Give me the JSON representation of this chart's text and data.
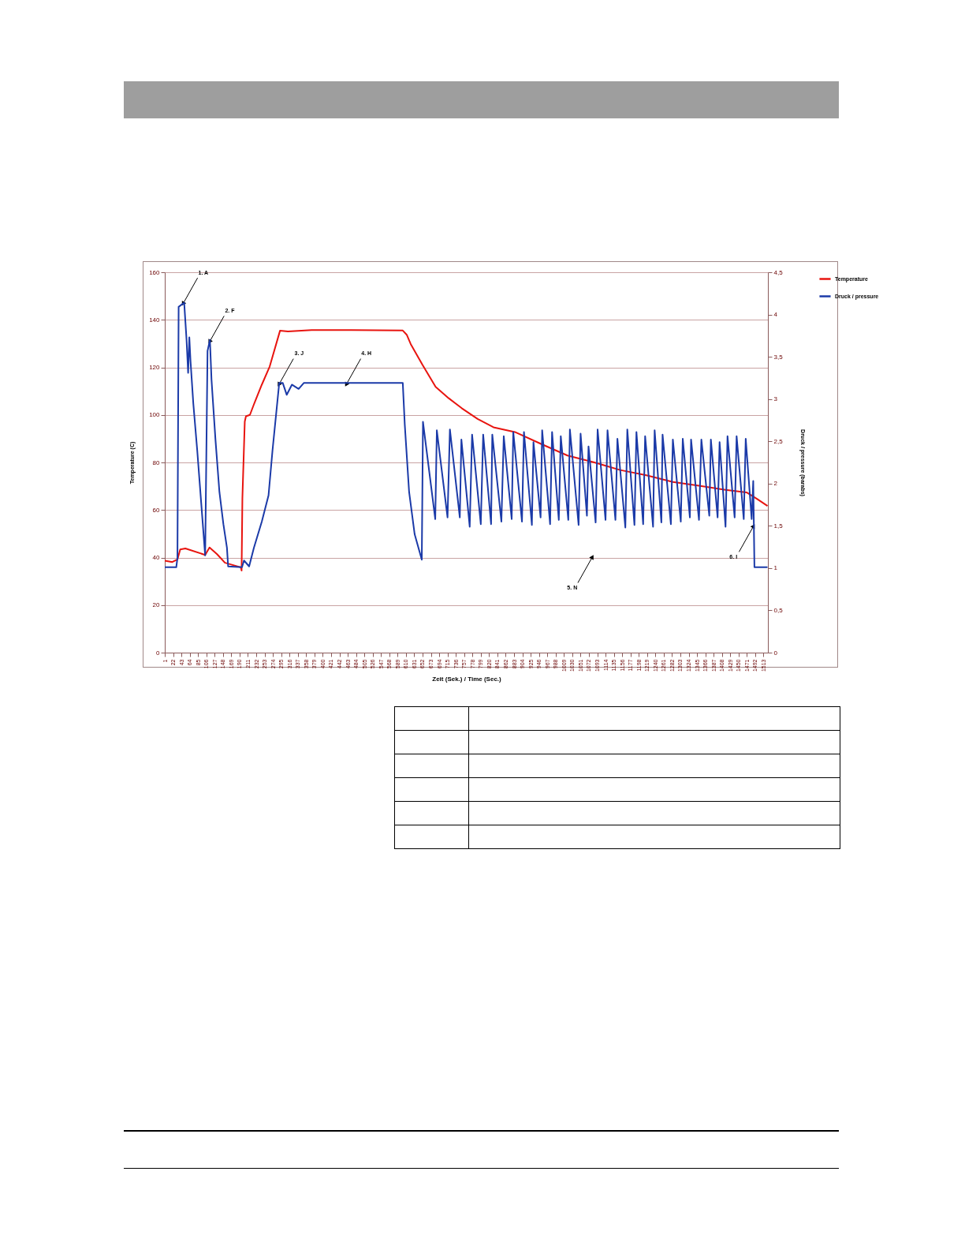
{
  "chart_data": {
    "type": "line",
    "xlabel": "Zeit (Sek.) / Time (Sec.)",
    "ylabel": "Temperature (C)",
    "y2label": "Druck / pressure (barabs)",
    "xlim": [
      1,
      1524
    ],
    "xticks": [
      1,
      22,
      43,
      64,
      85,
      106,
      127,
      148,
      169,
      190,
      211,
      232,
      253,
      274,
      295,
      316,
      337,
      358,
      379,
      400,
      421,
      442,
      463,
      484,
      505,
      526,
      547,
      568,
      589,
      610,
      631,
      652,
      673,
      694,
      715,
      736,
      757,
      778,
      799,
      820,
      841,
      862,
      883,
      904,
      925,
      946,
      967,
      988,
      1009,
      1030,
      1051,
      1072,
      1093,
      1114,
      1135,
      1156,
      1177,
      1198,
      1219,
      1240,
      1261,
      1282,
      1303,
      1324,
      1345,
      1366,
      1387,
      1408,
      1429,
      1450,
      1471,
      1492,
      1513
    ],
    "ylim": [
      0,
      160
    ],
    "yticks": [
      0,
      20,
      40,
      60,
      80,
      100,
      120,
      140,
      160
    ],
    "y2lim": [
      0,
      4.5
    ],
    "y2ticks": [
      0,
      {
        "value": 0.5,
        "label": "0,5"
      },
      1,
      {
        "value": 1.5,
        "label": "1,5"
      },
      2,
      {
        "value": 2.5,
        "label": "2,5"
      },
      3,
      {
        "value": 3.5,
        "label": "3,5"
      },
      4,
      {
        "value": 4.5,
        "label": "4,5"
      }
    ],
    "grid": "y",
    "legend": "right",
    "series": [
      {
        "name": "Temperature",
        "color": "#e8140f",
        "x": [
          1,
          20,
          33,
          40,
          53,
          103,
          114,
          133,
          153,
          193,
          195,
          197,
          203,
          206,
          216,
          226,
          246,
          266,
          292,
          312,
          372,
          472,
          602,
          612,
          622,
          652,
          685,
          718,
          751,
          791,
          831,
          885,
          951,
          1018,
          1084,
          1151,
          1217,
          1284,
          1350,
          1417,
          1470,
          1497,
          1523
        ],
        "values": [
          38.7,
          38.1,
          39.2,
          43.4,
          43.8,
          41.1,
          44.2,
          41.4,
          37.8,
          35.9,
          34.5,
          65,
          97.2,
          99.4,
          100,
          104.4,
          112.7,
          120.4,
          135.4,
          135.1,
          135.7,
          135.7,
          135.5,
          133.7,
          129.8,
          121,
          111.8,
          107,
          102.8,
          98.3,
          94.8,
          92.8,
          87.8,
          82.9,
          80.1,
          76.8,
          74.6,
          71.8,
          70.2,
          68.5,
          67.4,
          64.6,
          61.7
        ]
      },
      {
        "name": "Druck / pressure",
        "color": "#1b3aa8",
        "axis": "y2",
        "x": [
          1,
          30,
          33,
          36,
          50,
          53,
          56,
          60,
          63,
          66,
          73,
          83,
          93,
          103,
          109,
          115,
          119,
          129,
          139,
          149,
          158,
          161,
          196,
          201,
          214,
          226,
          246,
          263,
          273,
          290,
          299,
          309,
          322,
          339,
          352,
          472,
          602,
          607,
          618,
          632,
          650,
          653,
          684,
          688,
          715,
          721,
          746,
          750,
          771,
          777,
          799,
          805,
          825,
          828,
          851,
          857,
          877,
          881,
          903,
          908,
          928,
          932,
          950,
          954,
          974,
          979,
          996,
          1001,
          1020,
          1024,
          1046,
          1051,
          1067,
          1071,
          1089,
          1094,
          1114,
          1119,
          1139,
          1144,
          1164,
          1169,
          1187,
          1192,
          1209,
          1214,
          1234,
          1238,
          1255,
          1258,
          1279,
          1284,
          1304,
          1309,
          1327,
          1330,
          1350,
          1356,
          1376,
          1380,
          1397,
          1402,
          1417,
          1422,
          1440,
          1445,
          1463,
          1468,
          1483,
          1487,
          1490,
          1523
        ],
        "values": [
          1.01,
          1.01,
          1.12,
          4.09,
          4.14,
          3.92,
          3.7,
          3.31,
          3.73,
          3.45,
          2.95,
          2.39,
          1.77,
          1.15,
          3.57,
          3.7,
          3.23,
          2.52,
          1.9,
          1.52,
          1.24,
          1.02,
          1.01,
          1.09,
          1.02,
          1.24,
          1.55,
          1.86,
          2.39,
          3.19,
          3.19,
          3.05,
          3.17,
          3.12,
          3.19,
          3.19,
          3.19,
          2.7,
          1.9,
          1.4,
          1.1,
          2.73,
          1.58,
          2.63,
          1.6,
          2.64,
          1.6,
          2.52,
          1.49,
          2.58,
          1.52,
          2.58,
          1.52,
          2.58,
          1.55,
          2.56,
          1.58,
          2.61,
          1.55,
          2.61,
          1.51,
          2.49,
          1.6,
          2.63,
          1.52,
          2.61,
          1.57,
          2.56,
          1.57,
          2.64,
          1.51,
          2.59,
          1.62,
          2.44,
          1.54,
          2.64,
          1.57,
          2.63,
          1.57,
          2.53,
          1.48,
          2.64,
          1.51,
          2.61,
          1.52,
          2.56,
          1.49,
          2.63,
          1.54,
          2.58,
          1.52,
          2.52,
          1.55,
          2.53,
          1.6,
          2.52,
          1.57,
          2.52,
          1.62,
          2.52,
          1.6,
          2.49,
          1.49,
          2.56,
          1.6,
          2.56,
          1.58,
          2.53,
          1.58,
          2.03,
          1.01,
          1.01
        ]
      }
    ],
    "annotations": [
      {
        "text": "1. A",
        "x": 48,
        "y": 147
      },
      {
        "text": "2. F",
        "x": 115,
        "y": 131
      },
      {
        "text": "3. J",
        "x": 290,
        "y": 113
      },
      {
        "text": "4. H",
        "x": 460,
        "y": 113
      },
      {
        "text": "5. N",
        "x": 1080,
        "y": 40
      },
      {
        "text": "6. I",
        "x": 1487,
        "y": 53
      }
    ]
  }
}
